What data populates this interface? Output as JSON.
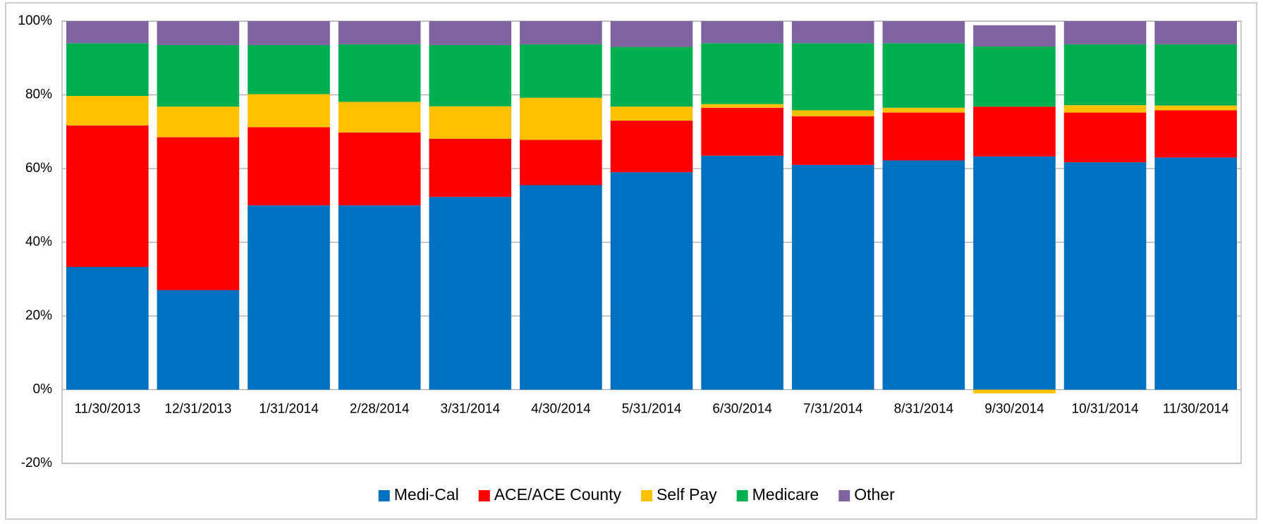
{
  "chart_data": {
    "type": "stacked_bar",
    "categories": [
      "11/30/2013",
      "12/31/2013",
      "1/31/2014",
      "2/28/2014",
      "3/31/2014",
      "4/30/2014",
      "5/31/2014",
      "6/30/2014",
      "7/31/2014",
      "8/31/2014",
      "9/30/2014",
      "10/31/2014",
      "11/30/2014"
    ],
    "series": [
      {
        "name": "Medi-Cal",
        "color": "#0070c0",
        "values": [
          33.3,
          27.0,
          50.0,
          50.0,
          52.3,
          55.5,
          59.0,
          63.5,
          61.0,
          62.2,
          63.3,
          61.7,
          63.0
        ]
      },
      {
        "name": "ACE/ACE County",
        "color": "#ff0000",
        "values": [
          38.4,
          41.5,
          21.2,
          19.8,
          15.8,
          12.3,
          14.0,
          13.0,
          13.2,
          13.0,
          13.5,
          13.5,
          12.8
        ]
      },
      {
        "name": "Self Pay",
        "color": "#ffc000",
        "values": [
          8.0,
          8.3,
          9.0,
          8.3,
          8.8,
          11.4,
          3.8,
          1.0,
          1.6,
          1.3,
          -1.0,
          2.0,
          1.3
        ]
      },
      {
        "name": "Medicare",
        "color": "#00b050",
        "values": [
          14.3,
          16.7,
          13.3,
          15.6,
          16.6,
          14.5,
          16.2,
          16.5,
          18.2,
          17.5,
          16.3,
          16.5,
          16.6
        ]
      },
      {
        "name": "Other",
        "color": "#8064a2",
        "values": [
          6.0,
          6.5,
          6.5,
          6.3,
          6.5,
          6.3,
          7.0,
          6.0,
          6.0,
          6.0,
          5.8,
          6.3,
          6.3
        ]
      }
    ],
    "ylim": [
      -20,
      100
    ],
    "yticks": [
      {
        "value": -20,
        "label": "-20%"
      },
      {
        "value": 0,
        "label": "0%"
      },
      {
        "value": 20,
        "label": "20%"
      },
      {
        "value": 40,
        "label": "40%"
      },
      {
        "value": 60,
        "label": "60%"
      },
      {
        "value": 80,
        "label": "80%"
      },
      {
        "value": 100,
        "label": "100%"
      }
    ],
    "grid": true,
    "legend": "bottom"
  }
}
